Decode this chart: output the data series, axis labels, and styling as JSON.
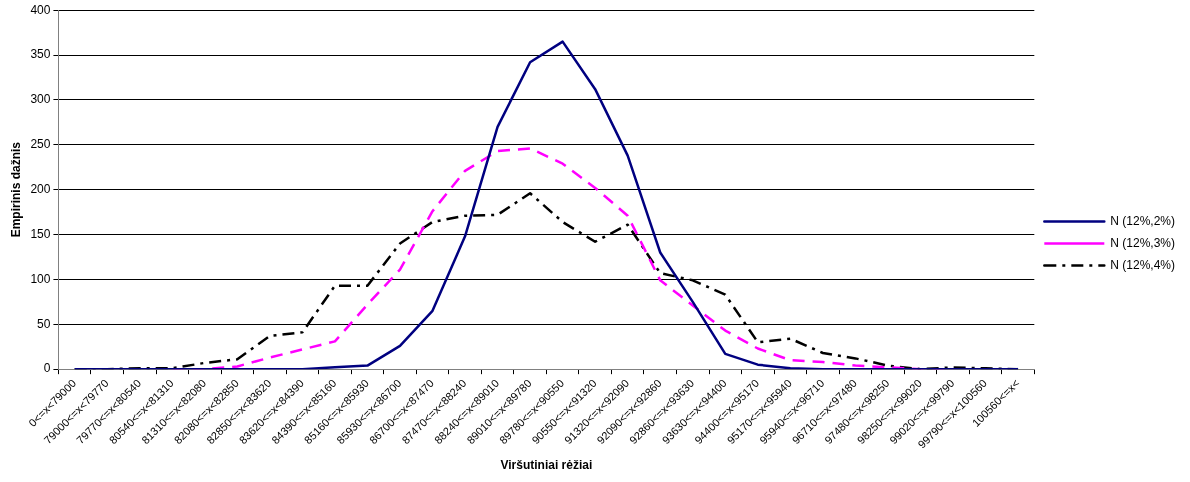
{
  "chart_data": {
    "type": "line",
    "xlabel": "Viršutiniai rėžiai",
    "ylabel": "Empirinis dažnis",
    "categories": [
      "0<=x<79000",
      "79000<=x<79770",
      "79770<=x<80540",
      "80540<=x<81310",
      "81310<=x<82080",
      "82080<=x<82850",
      "82850<=x<83620",
      "83620<=x<84390",
      "84390<=x<85160",
      "85160<=x<85930",
      "85930<=x<86700",
      "86700<=x<87470",
      "87470<=x<88240",
      "88240<=x<89010",
      "89010<=x<89780",
      "89780<=x<90550",
      "90550<=x<91320",
      "91320<=x<92090",
      "92090<=x<92860",
      "92860<=x<93630",
      "93630<=x<94400",
      "94400<=x<95170",
      "95170<=x<95940",
      "95940<=x<96710",
      "96710<=x<97480",
      "97480<=x<98250",
      "98250<=x<99020",
      "99020<=x<99790",
      "99790<=x<100560",
      "100560<=x<"
    ],
    "series": [
      {
        "name": "N (12%,2%)",
        "color": "#000080",
        "line_style": "solid",
        "values": [
          0,
          0,
          0,
          0,
          0,
          0,
          0,
          0,
          2,
          4,
          26,
          65,
          148,
          270,
          342,
          365,
          312,
          238,
          130,
          75,
          17,
          5,
          1,
          0,
          0,
          0,
          0,
          0,
          0,
          0
        ]
      },
      {
        "name": "N (12%,3%)",
        "color": "#ff00ff",
        "line_style": "dashed",
        "values": [
          null,
          null,
          null,
          0,
          0,
          3,
          13,
          22,
          31,
          72,
          111,
          176,
          221,
          243,
          246,
          229,
          202,
          171,
          99,
          71,
          43,
          23,
          10,
          8,
          4,
          2,
          0,
          0,
          null,
          null
        ]
      },
      {
        "name": "N (12%,4%)",
        "color": "#000000",
        "line_style": "dashdot",
        "values": [
          0,
          0,
          1,
          1,
          7,
          11,
          37,
          41,
          93,
          93,
          140,
          164,
          171,
          172,
          196,
          164,
          142,
          161,
          107,
          99,
          83,
          30,
          34,
          18,
          12,
          4,
          0,
          2,
          1,
          0
        ]
      }
    ],
    "ylim": [
      0,
      400
    ],
    "yticks": [
      0,
      50,
      100,
      150,
      200,
      250,
      300,
      350,
      400
    ],
    "grid": "y",
    "legend": "right",
    "marker": "none"
  }
}
